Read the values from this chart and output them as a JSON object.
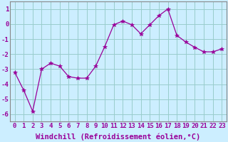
{
  "x": [
    0,
    1,
    2,
    3,
    4,
    5,
    6,
    7,
    8,
    9,
    10,
    11,
    12,
    13,
    14,
    15,
    16,
    17,
    18,
    19,
    20,
    21,
    22,
    23
  ],
  "y": [
    -3.2,
    -4.4,
    -5.8,
    -3.0,
    -2.6,
    -2.8,
    -3.5,
    -3.6,
    -3.6,
    -2.8,
    -1.5,
    -0.05,
    0.2,
    -0.05,
    -0.65,
    -0.05,
    0.55,
    1.0,
    -0.75,
    -1.2,
    -1.55,
    -1.85,
    -1.85,
    -1.65
  ],
  "line_color": "#990099",
  "marker": "*",
  "marker_size": 4,
  "bg_color": "#cceeff",
  "grid_color": "#99cccc",
  "xlabel": "Windchill (Refroidissement éolien,°C)",
  "xlabel_fontsize": 7.5,
  "tick_fontsize": 6.5,
  "ylim": [
    -6.5,
    1.5
  ],
  "yticks": [
    -6,
    -5,
    -4,
    -3,
    -2,
    -1,
    0,
    1
  ],
  "xticks": [
    0,
    1,
    2,
    3,
    4,
    5,
    6,
    7,
    8,
    9,
    10,
    11,
    12,
    13,
    14,
    15,
    16,
    17,
    18,
    19,
    20,
    21,
    22,
    23
  ],
  "xlabel_color": "#990099",
  "tick_color": "#990099"
}
